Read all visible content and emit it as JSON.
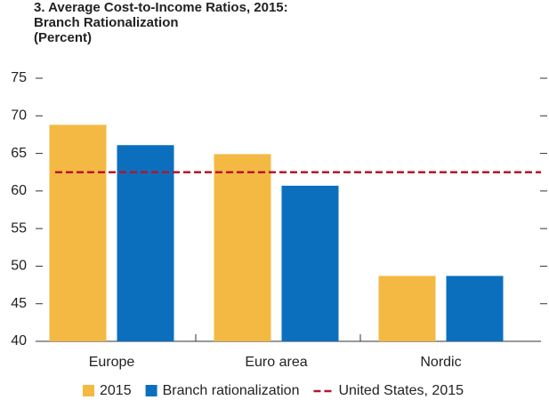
{
  "chart_data": {
    "type": "bar",
    "title": "3. Average Cost-to-Income Ratios, 2015: Branch Rationalization",
    "subtitle": "(Percent)",
    "categories": [
      "Europe",
      "Euro area",
      "Nordic"
    ],
    "series": [
      {
        "name": "2015",
        "color": "#f4b942",
        "values": [
          68.8,
          64.9,
          48.7
        ]
      },
      {
        "name": "Branch rationalization",
        "color": "#0b6fbe",
        "values": [
          66.1,
          60.7,
          48.7
        ]
      }
    ],
    "reference_lines": [
      {
        "name": "United States, 2015",
        "value": 62.5,
        "color": "#b5162b"
      }
    ],
    "ylim": [
      40,
      75
    ],
    "yticks": [
      40,
      45,
      50,
      55,
      60,
      65,
      70,
      75
    ]
  }
}
